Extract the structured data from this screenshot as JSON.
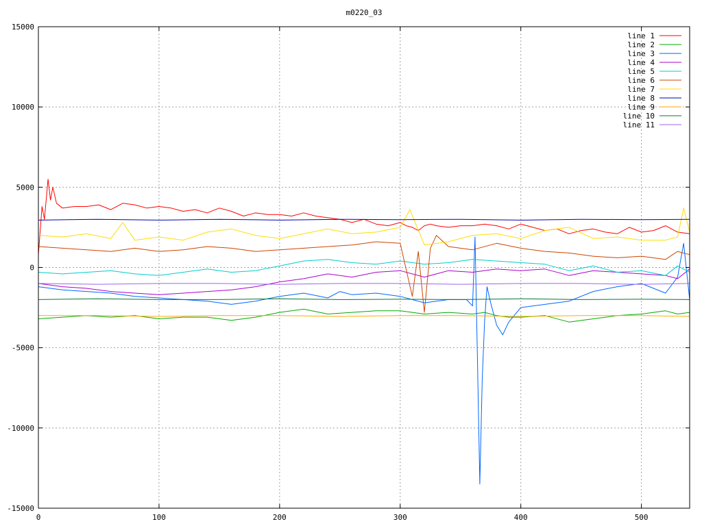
{
  "chart_data": {
    "type": "line",
    "title": "m0220_03",
    "xlabel": "",
    "ylabel": "",
    "xlim": [
      0,
      540
    ],
    "ylim": [
      -15000,
      15000
    ],
    "xticks": [
      0,
      100,
      200,
      300,
      400,
      500
    ],
    "yticks": [
      -15000,
      -10000,
      -5000,
      0,
      5000,
      10000,
      15000
    ],
    "grid": true,
    "legend_position": "top-right",
    "series": [
      {
        "name": "line 1",
        "color": "#ff0000",
        "x": [
          0,
          3,
          5,
          8,
          10,
          12,
          15,
          20,
          30,
          40,
          50,
          60,
          70,
          80,
          90,
          100,
          110,
          120,
          130,
          140,
          150,
          160,
          170,
          180,
          190,
          200,
          210,
          220,
          230,
          240,
          250,
          260,
          270,
          280,
          290,
          300,
          305,
          310,
          315,
          320,
          325,
          330,
          340,
          350,
          360,
          370,
          380,
          390,
          400,
          410,
          420,
          430,
          440,
          450,
          460,
          470,
          480,
          490,
          500,
          510,
          520,
          530,
          540
        ],
        "y": [
          800,
          3800,
          3000,
          5500,
          4200,
          5000,
          4000,
          3700,
          3800,
          3800,
          3900,
          3600,
          4000,
          3900,
          3700,
          3800,
          3700,
          3500,
          3600,
          3400,
          3700,
          3500,
          3200,
          3400,
          3300,
          3300,
          3200,
          3400,
          3200,
          3100,
          3000,
          2800,
          3000,
          2700,
          2600,
          2800,
          2600,
          2500,
          2300,
          2600,
          2700,
          2600,
          2500,
          2600,
          2600,
          2700,
          2600,
          2400,
          2700,
          2500,
          2300,
          2400,
          2100,
          2300,
          2400,
          2200,
          2100,
          2500,
          2200,
          2300,
          2600,
          2200,
          2100
        ]
      },
      {
        "name": "line 2",
        "color": "#00aa00",
        "x": [
          0,
          20,
          40,
          60,
          80,
          100,
          120,
          140,
          160,
          180,
          200,
          220,
          240,
          260,
          280,
          300,
          320,
          340,
          360,
          370,
          380,
          390,
          400,
          420,
          440,
          460,
          480,
          500,
          520,
          530,
          540
        ],
        "y": [
          -3200,
          -3100,
          -3000,
          -3100,
          -3000,
          -3200,
          -3100,
          -3100,
          -3300,
          -3100,
          -2800,
          -2600,
          -2900,
          -2800,
          -2700,
          -2700,
          -2900,
          -2800,
          -2900,
          -2800,
          -3000,
          -3100,
          -3100,
          -3000,
          -3400,
          -3200,
          -3000,
          -2900,
          -2700,
          -2900,
          -2800
        ]
      },
      {
        "name": "line 3",
        "color": "#0066ff",
        "x": [
          0,
          20,
          40,
          60,
          80,
          100,
          120,
          140,
          160,
          180,
          200,
          220,
          240,
          250,
          260,
          280,
          300,
          320,
          340,
          355,
          360,
          362,
          364,
          366,
          368,
          370,
          372,
          375,
          380,
          385,
          390,
          400,
          420,
          440,
          460,
          480,
          500,
          520,
          530,
          535,
          540
        ],
        "y": [
          -1200,
          -1400,
          -1500,
          -1600,
          -1800,
          -1900,
          -2000,
          -2100,
          -2300,
          -2100,
          -1800,
          -1600,
          -1900,
          -1500,
          -1700,
          -1600,
          -1800,
          -2200,
          -2000,
          -2000,
          -2400,
          1900,
          -5600,
          -13500,
          -7000,
          -3300,
          -1200,
          -2200,
          -3600,
          -4200,
          -3400,
          -2500,
          -2300,
          -2100,
          -1500,
          -1200,
          -1000,
          -1600,
          -600,
          1500,
          -2000
        ]
      },
      {
        "name": "line 4",
        "color": "#aa00cc",
        "x": [
          0,
          20,
          40,
          60,
          80,
          100,
          120,
          140,
          160,
          180,
          200,
          220,
          240,
          260,
          280,
          300,
          320,
          340,
          360,
          380,
          400,
          420,
          440,
          460,
          480,
          500,
          520,
          530,
          540
        ],
        "y": [
          -1000,
          -1200,
          -1300,
          -1500,
          -1600,
          -1700,
          -1600,
          -1500,
          -1400,
          -1200,
          -900,
          -700,
          -400,
          -600,
          -300,
          -200,
          -600,
          -200,
          -300,
          -100,
          -200,
          -100,
          -500,
          -200,
          -300,
          -400,
          -500,
          -700,
          -100
        ]
      },
      {
        "name": "line 5",
        "color": "#00cccc",
        "x": [
          0,
          20,
          40,
          60,
          80,
          100,
          120,
          140,
          160,
          180,
          200,
          220,
          240,
          260,
          280,
          300,
          320,
          340,
          360,
          380,
          400,
          420,
          440,
          460,
          480,
          500,
          520,
          530,
          540
        ],
        "y": [
          -300,
          -400,
          -300,
          -200,
          -400,
          -500,
          -300,
          -100,
          -300,
          -200,
          100,
          400,
          500,
          300,
          200,
          400,
          200,
          300,
          500,
          400,
          300,
          200,
          -200,
          100,
          -300,
          -200,
          -500,
          100,
          -300
        ]
      },
      {
        "name": "line 6",
        "color": "#cc4400",
        "x": [
          0,
          20,
          40,
          60,
          80,
          100,
          120,
          140,
          160,
          180,
          200,
          220,
          240,
          260,
          280,
          300,
          310,
          315,
          320,
          325,
          330,
          340,
          360,
          380,
          400,
          420,
          440,
          460,
          480,
          500,
          520,
          530,
          540
        ],
        "y": [
          1300,
          1200,
          1100,
          1000,
          1200,
          1000,
          1100,
          1300,
          1200,
          1000,
          1100,
          1200,
          1300,
          1400,
          1600,
          1500,
          -1800,
          1000,
          -2800,
          1200,
          2000,
          1300,
          1100,
          1500,
          1200,
          1000,
          900,
          700,
          600,
          700,
          500,
          1000,
          800
        ]
      },
      {
        "name": "line 7",
        "color": "#ffdd00",
        "x": [
          0,
          20,
          40,
          60,
          70,
          80,
          100,
          120,
          140,
          160,
          180,
          200,
          220,
          240,
          260,
          280,
          300,
          308,
          320,
          340,
          360,
          380,
          400,
          420,
          440,
          460,
          480,
          500,
          520,
          530,
          535,
          540
        ],
        "y": [
          2000,
          1900,
          2100,
          1800,
          2800,
          1700,
          1900,
          1700,
          2200,
          2400,
          2000,
          1800,
          2100,
          2400,
          2100,
          2200,
          2500,
          3600,
          1400,
          1600,
          2000,
          2100,
          1800,
          2300,
          2500,
          1800,
          1900,
          1700,
          1700,
          1900,
          3700,
          2200
        ]
      },
      {
        "name": "line 8",
        "color": "#0000aa",
        "x": [
          0,
          50,
          100,
          150,
          200,
          250,
          300,
          350,
          400,
          450,
          500,
          540
        ],
        "y": [
          2950,
          3000,
          2950,
          3000,
          2950,
          3000,
          2980,
          3000,
          2950,
          3000,
          2980,
          3000
        ]
      },
      {
        "name": "line 9",
        "color": "#ffaa00",
        "x": [
          0,
          50,
          100,
          150,
          200,
          250,
          300,
          350,
          400,
          450,
          500,
          540
        ],
        "y": [
          -3000,
          -3000,
          -3050,
          -3000,
          -3000,
          -3050,
          -3000,
          -3000,
          -3050,
          -3000,
          -3000,
          -3050
        ]
      },
      {
        "name": "line 10",
        "color": "#007733",
        "x": [
          0,
          50,
          100,
          150,
          200,
          250,
          300,
          350,
          400,
          450,
          500,
          540
        ],
        "y": [
          -2000,
          -1950,
          -2000,
          -2000,
          -1950,
          -2000,
          -1980,
          -2000,
          -1950,
          -2000,
          -1980,
          -2000
        ]
      },
      {
        "name": "line 11",
        "color": "#9966ee",
        "x": [
          0,
          50,
          100,
          150,
          200,
          250,
          300,
          350,
          400,
          450,
          500,
          540
        ],
        "y": [
          -1000,
          -1050,
          -1000,
          -1000,
          -1050,
          -1000,
          -1000,
          -1050,
          -1000,
          -1000,
          -1050,
          -1000
        ]
      }
    ]
  }
}
